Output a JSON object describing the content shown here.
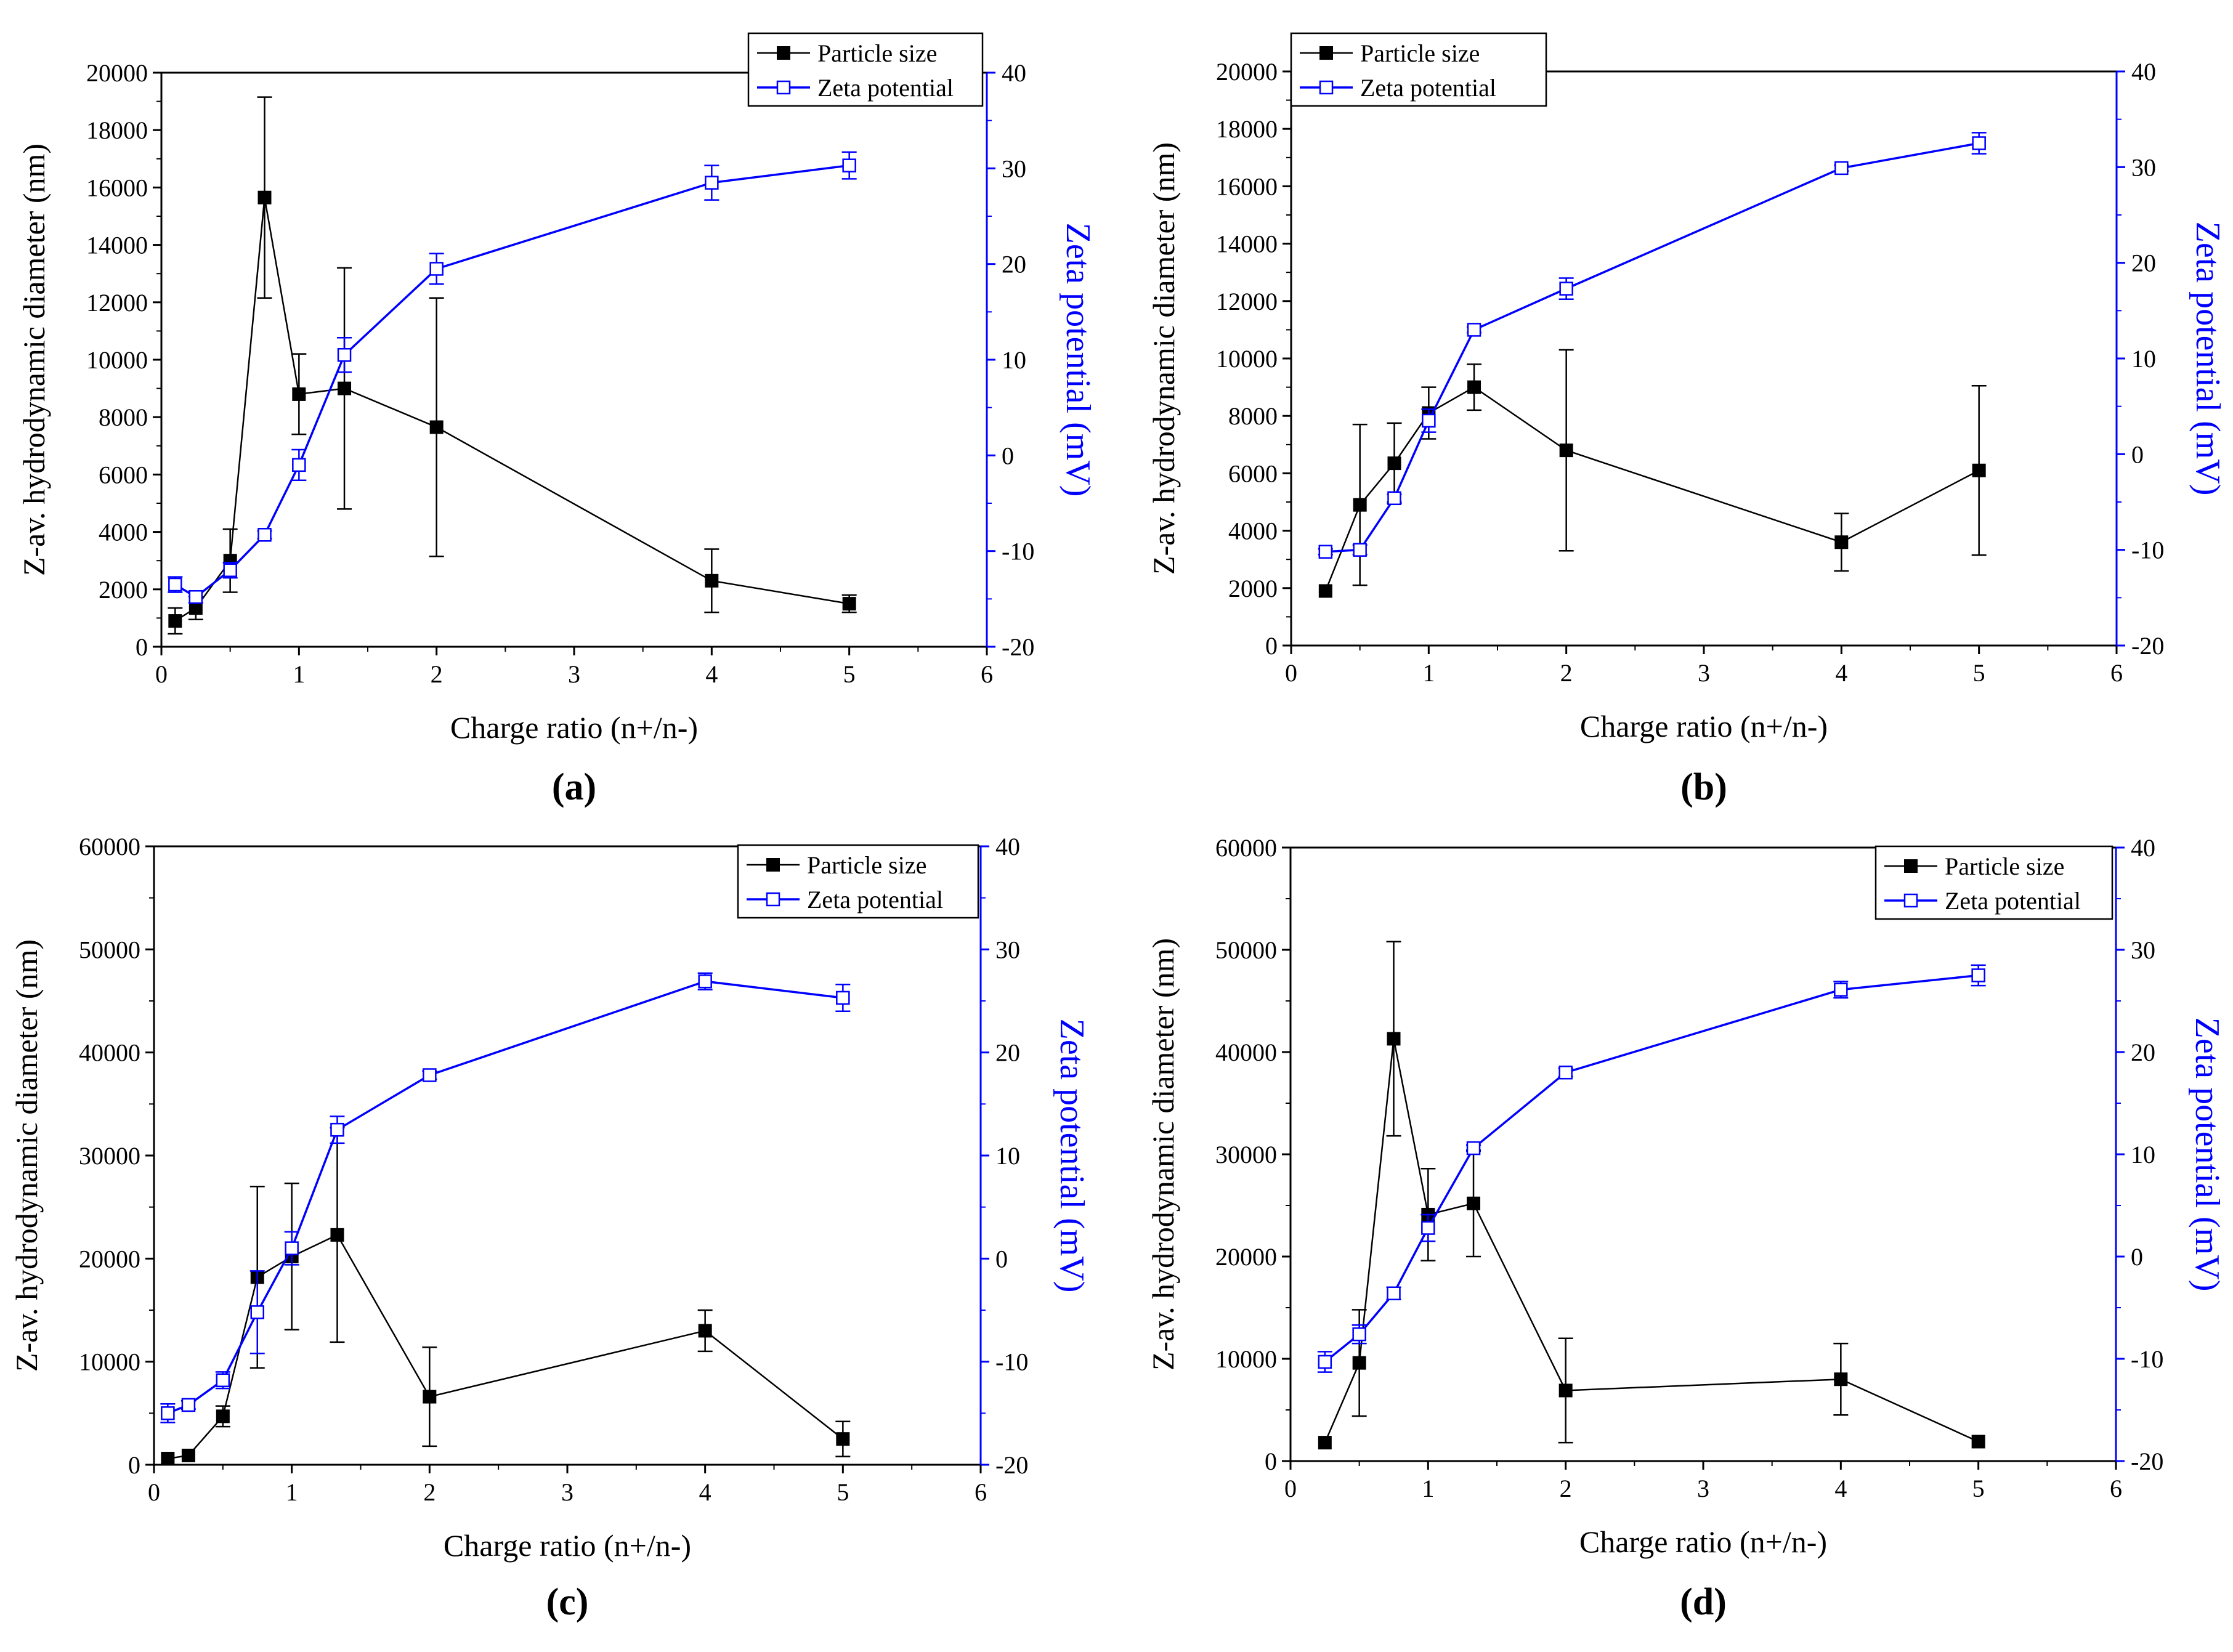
{
  "panel_labels": [
    "(a)",
    "(b)",
    "(c)",
    "(d)"
  ],
  "colors": {
    "particle": "#000000",
    "zeta": "#0000ff"
  },
  "chart_data": [
    {
      "type": "line",
      "panel": "(a)",
      "xlabel": "Charge ratio (n+/n-)",
      "ylabel_left": "Z-av. hydrodynamic diameter (nm)",
      "ylabel_right": "Zeta potential (mV)",
      "xlim": [
        0,
        6
      ],
      "x_ticks": [
        0,
        1,
        2,
        3,
        4,
        5,
        6
      ],
      "ylim_left": [
        0,
        20000
      ],
      "y_left_ticks": [
        0,
        2000,
        4000,
        6000,
        8000,
        10000,
        12000,
        14000,
        16000,
        18000,
        20000
      ],
      "ylim_right": [
        -20,
        40
      ],
      "y_right_ticks": [
        -20,
        -10,
        0,
        10,
        20,
        30,
        40
      ],
      "legend": [
        "Particle size",
        "Zeta potential"
      ],
      "legend_position": "top-right",
      "series": [
        {
          "name": "Particle size",
          "axis": "left",
          "marker": "filled-square",
          "x": [
            0.1,
            0.25,
            0.5,
            0.75,
            1,
            1.33,
            2,
            4,
            5
          ],
          "y": [
            900,
            1350,
            3000,
            15650,
            8800,
            9000,
            7650,
            2300,
            1500
          ],
          "err": [
            450,
            400,
            1100,
            3500,
            1400,
            4200,
            4500,
            1100,
            300
          ]
        },
        {
          "name": "Zeta potential",
          "axis": "right",
          "marker": "open-square",
          "x": [
            0.1,
            0.25,
            0.5,
            0.75,
            1,
            1.33,
            2,
            4,
            5
          ],
          "y": [
            -13.5,
            -14.8,
            -12,
            -8.3,
            -1,
            10.5,
            19.5,
            28.5,
            30.3
          ],
          "err": [
            0.8,
            0.6,
            0.8,
            0.4,
            1.6,
            1.8,
            1.6,
            1.8,
            1.4
          ]
        }
      ]
    },
    {
      "type": "line",
      "panel": "(b)",
      "xlabel": "Charge ratio (n+/n-)",
      "ylabel_left": "Z-av. hydrodynamic diameter (nm)",
      "ylabel_right": "Zeta potential (mV)",
      "xlim": [
        0,
        6
      ],
      "x_ticks": [
        0,
        1,
        2,
        3,
        4,
        5,
        6
      ],
      "ylim_left": [
        0,
        20000
      ],
      "y_left_ticks": [
        0,
        2000,
        4000,
        6000,
        8000,
        10000,
        12000,
        14000,
        16000,
        18000,
        20000
      ],
      "ylim_right": [
        -20,
        40
      ],
      "y_right_ticks": [
        -20,
        -10,
        0,
        10,
        20,
        30,
        40
      ],
      "legend": [
        "Particle size",
        "Zeta potential"
      ],
      "legend_position": "top-left",
      "series": [
        {
          "name": "Particle size",
          "axis": "left",
          "marker": "filled-square",
          "x": [
            0.25,
            0.5,
            0.75,
            1,
            1.33,
            2,
            4,
            5
          ],
          "y": [
            1900,
            4900,
            6350,
            8100,
            9000,
            6800,
            3600,
            6100
          ],
          "err": [
            0,
            2800,
            1400,
            900,
            800,
            3500,
            1000,
            2950
          ]
        },
        {
          "name": "Zeta potential",
          "axis": "right",
          "marker": "open-square",
          "x": [
            0.25,
            0.5,
            0.75,
            1,
            1.33,
            2,
            4,
            5
          ],
          "y": [
            -10.2,
            -10,
            -4.6,
            3.5,
            13,
            17.3,
            29.9,
            32.5
          ],
          "err": [
            0.3,
            0.5,
            0.4,
            1.2,
            0.3,
            1.1,
            0.3,
            1.1
          ]
        }
      ]
    },
    {
      "type": "line",
      "panel": "(c)",
      "xlabel": "Charge ratio (n+/n-)",
      "ylabel_left": "Z-av. hydrodynamic diameter (nm)",
      "ylabel_right": "Zeta potential (mV)",
      "xlim": [
        0,
        6
      ],
      "x_ticks": [
        0,
        1,
        2,
        3,
        4,
        5,
        6
      ],
      "ylim_left": [
        0,
        60000
      ],
      "y_left_ticks": [
        0,
        10000,
        20000,
        30000,
        40000,
        50000,
        60000
      ],
      "ylim_right": [
        -20,
        40
      ],
      "y_right_ticks": [
        -20,
        -10,
        0,
        10,
        20,
        30,
        40
      ],
      "legend": [
        "Particle size",
        "Zeta potential"
      ],
      "legend_position": "top-right",
      "series": [
        {
          "name": "Particle size",
          "axis": "left",
          "marker": "filled-square",
          "x": [
            0.1,
            0.25,
            0.5,
            0.75,
            1,
            1.33,
            2,
            4,
            5
          ],
          "y": [
            600,
            900,
            4700,
            18200,
            20200,
            22300,
            6600,
            13000,
            2500
          ],
          "err": [
            0,
            0,
            1000,
            8800,
            7100,
            10400,
            4800,
            2000,
            1700
          ]
        },
        {
          "name": "Zeta potential",
          "axis": "right",
          "marker": "open-square",
          "x": [
            0.1,
            0.25,
            0.5,
            0.75,
            1,
            1.33,
            2,
            4,
            5
          ],
          "y": [
            -15,
            -14.2,
            -11.8,
            -5.2,
            1,
            12.5,
            17.8,
            26.9,
            25.3
          ],
          "err": [
            0.9,
            0.4,
            0.8,
            4,
            1.6,
            1.3,
            0.4,
            0.8,
            1.3
          ]
        }
      ]
    },
    {
      "type": "line",
      "panel": "(d)",
      "xlabel": "Charge ratio (n+/n-)",
      "ylabel_left": "Z-av. hydrodynamic diameter (nm)",
      "ylabel_right": "Zeta potential (mV)",
      "xlim": [
        0,
        6
      ],
      "x_ticks": [
        0,
        1,
        2,
        3,
        4,
        5,
        6
      ],
      "ylim_left": [
        0,
        60000
      ],
      "y_left_ticks": [
        0,
        10000,
        20000,
        30000,
        40000,
        50000,
        60000
      ],
      "ylim_right": [
        -20,
        40
      ],
      "y_right_ticks": [
        -20,
        -10,
        0,
        10,
        20,
        30,
        40
      ],
      "legend": [
        "Particle size",
        "Zeta potential"
      ],
      "legend_position": "top-right",
      "series": [
        {
          "name": "Particle size",
          "axis": "left",
          "marker": "filled-square",
          "x": [
            0.25,
            0.5,
            0.75,
            1,
            1.33,
            2,
            4,
            5
          ],
          "y": [
            1800,
            9600,
            41300,
            24100,
            25200,
            6900,
            8000,
            1900
          ],
          "err": [
            0,
            5200,
            9500,
            4500,
            5200,
            5100,
            3500,
            0
          ]
        },
        {
          "name": "Zeta potential",
          "axis": "right",
          "marker": "open-square",
          "x": [
            0.25,
            0.5,
            0.75,
            1,
            1.33,
            2,
            4,
            5
          ],
          "y": [
            -10.3,
            -7.6,
            -3.6,
            2.8,
            10.6,
            18,
            26.1,
            27.5
          ],
          "err": [
            1,
            0.9,
            0.6,
            1.3,
            0.3,
            0.4,
            0.8,
            1
          ]
        }
      ]
    }
  ]
}
